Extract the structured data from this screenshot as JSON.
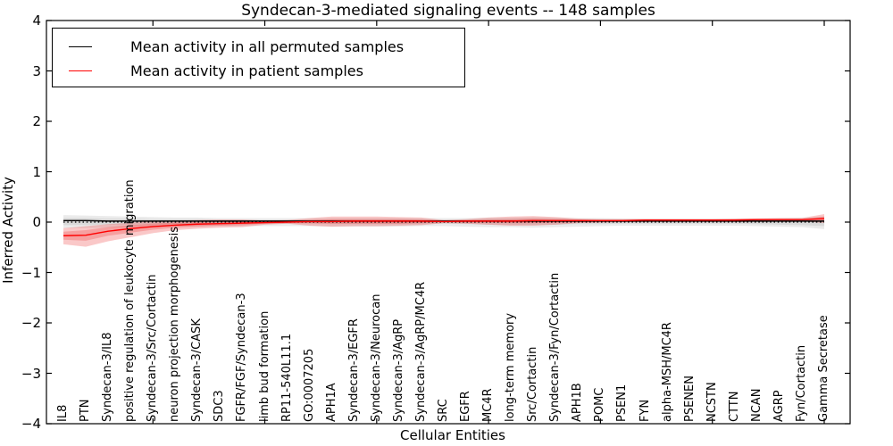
{
  "chart_data": {
    "type": "line",
    "title": "Syndecan-3-mediated signaling events -- 148 samples",
    "xlabel": "Cellular Entities",
    "ylabel": "Inferred Activity",
    "ylim": [
      -4,
      4
    ],
    "ytick_values": [
      4,
      3,
      2,
      1,
      0,
      -1,
      -2,
      -3,
      -4
    ],
    "ytick_labels": [
      "4",
      "3",
      "2",
      "1",
      "0",
      "−1",
      "−2",
      "−3",
      "−4"
    ],
    "xtick_indices": [
      4,
      9,
      14,
      19,
      24,
      29,
      34
    ],
    "grid": false,
    "legend_position": "upper left",
    "x_labels_rotated_inside": true,
    "zero_line": {
      "y": 0,
      "style": "dotted",
      "color": "#000000"
    },
    "categories": [
      "IL8",
      "PTN",
      "Syndecan-3/IL8",
      "positive regulation of leukocyte migration",
      "Syndecan-3/Src/Cortactin",
      "neuron projection morphogenesis",
      "Syndecan-3/CASK",
      "SDC3",
      "FGFR/FGF/Syndecan-3",
      "limb bud formation",
      "RP11-540L11.1",
      "GO:0007205",
      "APH1A",
      "Syndecan-3/EGFR",
      "Syndecan-3/Neurocan",
      "Syndecan-3/AgRP",
      "Syndecan-3/AgRP/MC4R",
      "SRC",
      "EGFR",
      "MC4R",
      "long-term memory",
      "Src/Cortactin",
      "Syndecan-3/Fyn/Cortactin",
      "APH1B",
      "POMC",
      "PSEN1",
      "FYN",
      "alpha-MSH/MC4R",
      "PSENEN",
      "NCSTN",
      "CTTN",
      "NCAN",
      "AGRP",
      "Fyn/Cortactin",
      "Gamma Secretase"
    ],
    "series": [
      {
        "name": "Mean activity in all permuted samples",
        "color": "#000000",
        "fill_color": "#888888",
        "fill_opacity": 0.17,
        "values": [
          0.03,
          0.03,
          0.02,
          0.02,
          0.02,
          0.02,
          0.02,
          0.02,
          0.02,
          0.02,
          0.02,
          0.02,
          0.02,
          0.02,
          0.02,
          0.02,
          0.02,
          0.02,
          0.02,
          0.02,
          0.02,
          0.02,
          0.02,
          0.02,
          0.02,
          0.02,
          0.02,
          0.02,
          0.02,
          0.02,
          0.02,
          0.02,
          0.02,
          0.02,
          0.02
        ],
        "band_outer": {
          "upper": [
            0.14,
            0.13,
            0.12,
            0.11,
            0.1,
            0.09,
            0.09,
            0.08,
            0.08,
            0.08,
            0.08,
            0.08,
            0.08,
            0.08,
            0.08,
            0.08,
            0.08,
            0.08,
            0.08,
            0.09,
            0.09,
            0.1,
            0.09,
            0.08,
            0.08,
            0.07,
            0.07,
            0.07,
            0.07,
            0.07,
            0.07,
            0.07,
            0.08,
            0.09,
            0.11
          ],
          "lower": [
            -0.12,
            -0.12,
            -0.11,
            -0.1,
            -0.09,
            -0.08,
            -0.08,
            -0.08,
            -0.08,
            -0.08,
            -0.08,
            -0.08,
            -0.09,
            -0.09,
            -0.09,
            -0.09,
            -0.08,
            -0.08,
            -0.09,
            -0.1,
            -0.1,
            -0.11,
            -0.1,
            -0.09,
            -0.08,
            -0.07,
            -0.07,
            -0.07,
            -0.07,
            -0.07,
            -0.07,
            -0.08,
            -0.09,
            -0.1,
            -0.14
          ]
        },
        "band_inner": {
          "upper": [
            0.08,
            0.08,
            0.07,
            0.07,
            0.06,
            0.06,
            0.06,
            0.05,
            0.05,
            0.05,
            0.05,
            0.05,
            0.05,
            0.05,
            0.05,
            0.05,
            0.05,
            0.05,
            0.05,
            0.06,
            0.06,
            0.06,
            0.06,
            0.05,
            0.05,
            0.05,
            0.05,
            0.04,
            0.04,
            0.04,
            0.05,
            0.05,
            0.05,
            0.06,
            0.07
          ],
          "lower": [
            -0.06,
            -0.06,
            -0.05,
            -0.05,
            -0.04,
            -0.04,
            -0.04,
            -0.03,
            -0.03,
            -0.03,
            -0.03,
            -0.03,
            -0.04,
            -0.04,
            -0.04,
            -0.04,
            -0.04,
            -0.03,
            -0.04,
            -0.05,
            -0.05,
            -0.05,
            -0.05,
            -0.04,
            -0.04,
            -0.03,
            -0.03,
            -0.03,
            -0.03,
            -0.03,
            -0.03,
            -0.04,
            -0.05,
            -0.06,
            -0.08
          ]
        }
      },
      {
        "name": "Mean activity in patient samples",
        "color": "#ff0000",
        "fill_color": "#ee3333",
        "fill_opacity": 0.27,
        "values": [
          -0.27,
          -0.26,
          -0.18,
          -0.13,
          -0.09,
          -0.06,
          -0.04,
          -0.03,
          -0.02,
          -0.01,
          0.0,
          0.01,
          0.01,
          0.02,
          0.02,
          0.02,
          0.02,
          0.01,
          0.02,
          0.02,
          0.02,
          0.03,
          0.03,
          0.03,
          0.03,
          0.03,
          0.04,
          0.04,
          0.04,
          0.04,
          0.04,
          0.05,
          0.05,
          0.05,
          0.07
        ],
        "band_outer": {
          "upper": [
            -0.12,
            -0.08,
            -0.04,
            -0.01,
            0.02,
            0.03,
            0.04,
            0.05,
            0.05,
            0.03,
            0.04,
            0.08,
            0.11,
            0.11,
            0.11,
            0.1,
            0.09,
            0.04,
            0.06,
            0.09,
            0.11,
            0.12,
            0.1,
            0.07,
            0.06,
            0.06,
            0.06,
            0.06,
            0.06,
            0.06,
            0.07,
            0.07,
            0.08,
            0.08,
            0.16
          ],
          "lower": [
            -0.44,
            -0.49,
            -0.38,
            -0.3,
            -0.22,
            -0.16,
            -0.13,
            -0.11,
            -0.1,
            -0.05,
            -0.03,
            -0.07,
            -0.09,
            -0.08,
            -0.08,
            -0.07,
            -0.06,
            -0.02,
            -0.03,
            -0.05,
            -0.07,
            -0.07,
            -0.05,
            -0.02,
            -0.01,
            0.0,
            0.01,
            0.01,
            0.01,
            0.02,
            0.02,
            0.02,
            0.02,
            0.02,
            -0.02
          ]
        },
        "band_inner": {
          "upper": [
            -0.19,
            -0.16,
            -0.1,
            -0.06,
            -0.03,
            -0.01,
            0.0,
            0.01,
            0.01,
            0.01,
            0.02,
            0.04,
            0.06,
            0.06,
            0.06,
            0.06,
            0.05,
            0.03,
            0.04,
            0.05,
            0.06,
            0.07,
            0.06,
            0.05,
            0.04,
            0.04,
            0.05,
            0.05,
            0.05,
            0.05,
            0.05,
            0.06,
            0.06,
            0.06,
            0.11
          ],
          "lower": [
            -0.35,
            -0.37,
            -0.27,
            -0.21,
            -0.15,
            -0.11,
            -0.09,
            -0.07,
            -0.06,
            -0.03,
            -0.02,
            -0.02,
            -0.03,
            -0.03,
            -0.03,
            -0.03,
            -0.02,
            0.0,
            -0.01,
            -0.01,
            -0.02,
            -0.02,
            -0.01,
            0.0,
            0.01,
            0.01,
            0.02,
            0.02,
            0.02,
            0.03,
            0.03,
            0.03,
            0.03,
            0.03,
            0.02
          ]
        }
      }
    ]
  }
}
